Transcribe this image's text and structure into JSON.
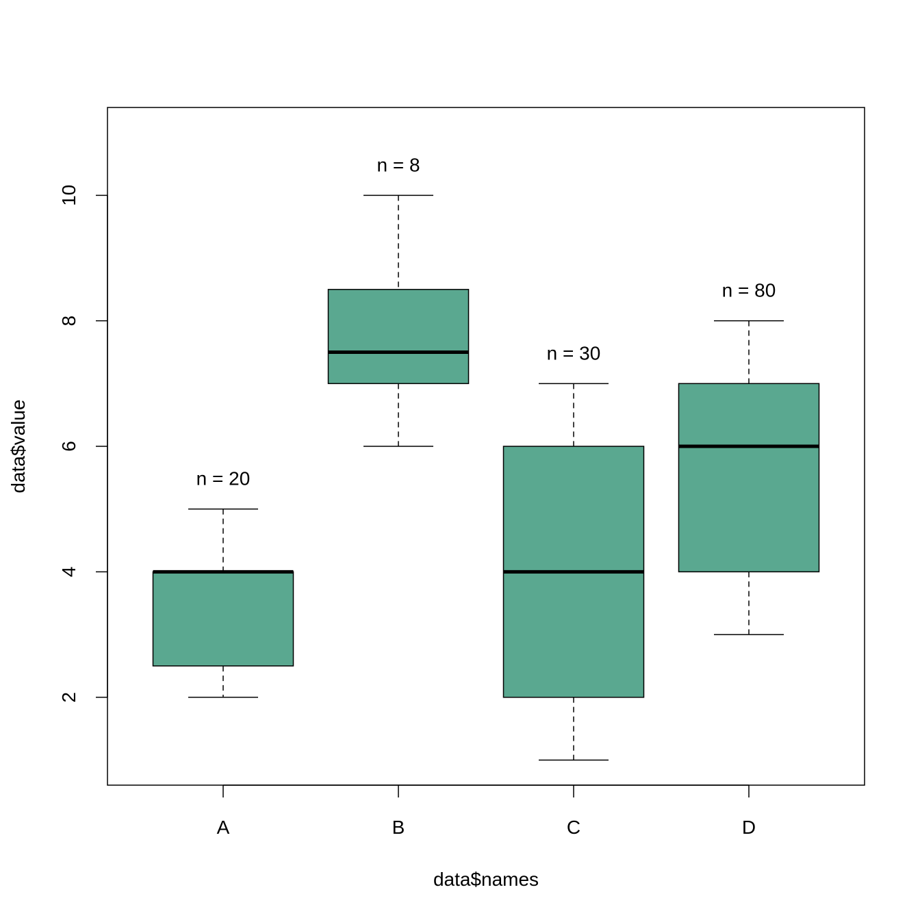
{
  "chart_data": {
    "type": "boxplot",
    "title": "",
    "xlabel": "data$names",
    "ylabel": "data$value",
    "ylim": [
      0.6,
      11.4
    ],
    "yticks": [
      2,
      4,
      6,
      8,
      10
    ],
    "categories": [
      "A",
      "B",
      "C",
      "D"
    ],
    "boxes": [
      {
        "name": "A",
        "min": 2,
        "q1": 2.5,
        "median": 4,
        "q3": 4,
        "max": 5,
        "n_label": "n = 20"
      },
      {
        "name": "B",
        "min": 6,
        "q1": 7,
        "median": 7.5,
        "q3": 8.5,
        "max": 10,
        "n_label": "n = 8"
      },
      {
        "name": "C",
        "min": 1,
        "q1": 2,
        "median": 4,
        "q3": 6,
        "max": 7,
        "n_label": "n = 30"
      },
      {
        "name": "D",
        "min": 3,
        "q1": 4,
        "median": 6,
        "q3": 7,
        "max": 8,
        "n_label": "n = 80"
      }
    ],
    "box_color": "#5aa890",
    "grid": false,
    "legend": "none"
  }
}
